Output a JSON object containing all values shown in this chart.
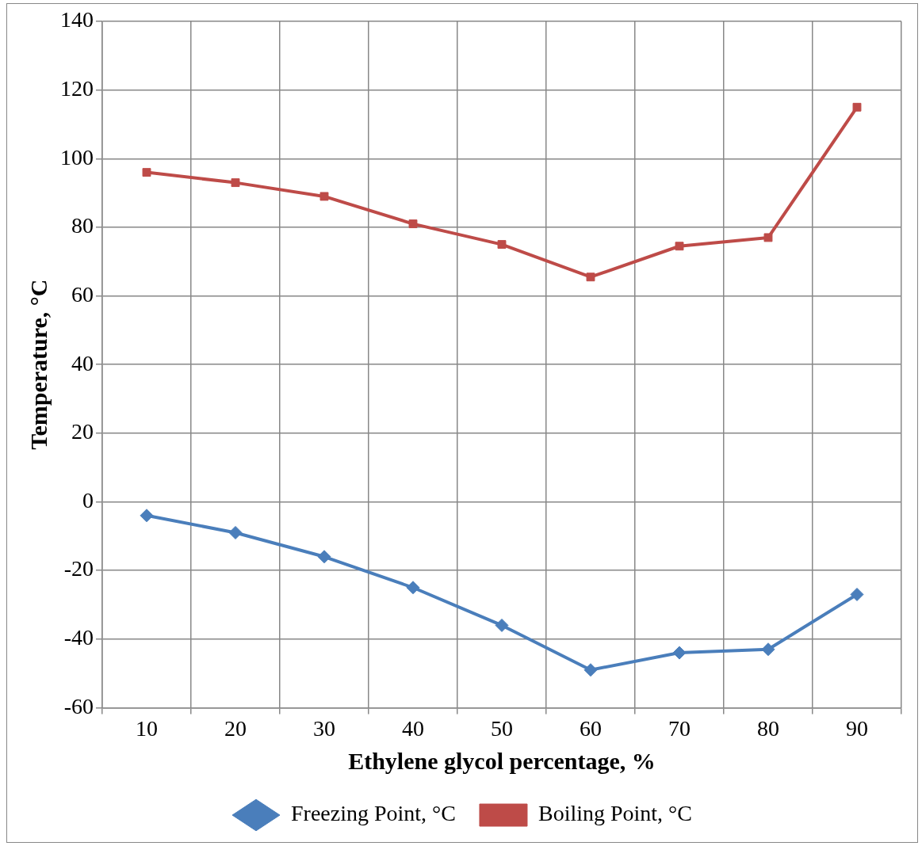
{
  "chart_data": {
    "type": "line",
    "xlabel": "Ethylene glycol percentage, %",
    "ylabel": "Temperature, °C",
    "categories": [
      "10",
      "20",
      "30",
      "40",
      "50",
      "60",
      "70",
      "80",
      "90"
    ],
    "series": [
      {
        "name": "Freezing Point, °C",
        "color": "#4a7ebb",
        "marker": "diamond",
        "values": [
          -4,
          -9,
          -16,
          -25,
          -36,
          -49,
          -44,
          -43,
          -27
        ]
      },
      {
        "name": "Boiling Point, °C",
        "color": "#be4b48",
        "marker": "square",
        "values": [
          96,
          93,
          89,
          81,
          75,
          65.5,
          74.5,
          77,
          115
        ]
      }
    ],
    "ylim": [
      -60,
      140
    ],
    "yticks": [
      -60,
      -40,
      -20,
      0,
      20,
      40,
      60,
      80,
      100,
      120,
      140
    ],
    "grid": true,
    "legend": "bottom",
    "line_style": "solid"
  }
}
